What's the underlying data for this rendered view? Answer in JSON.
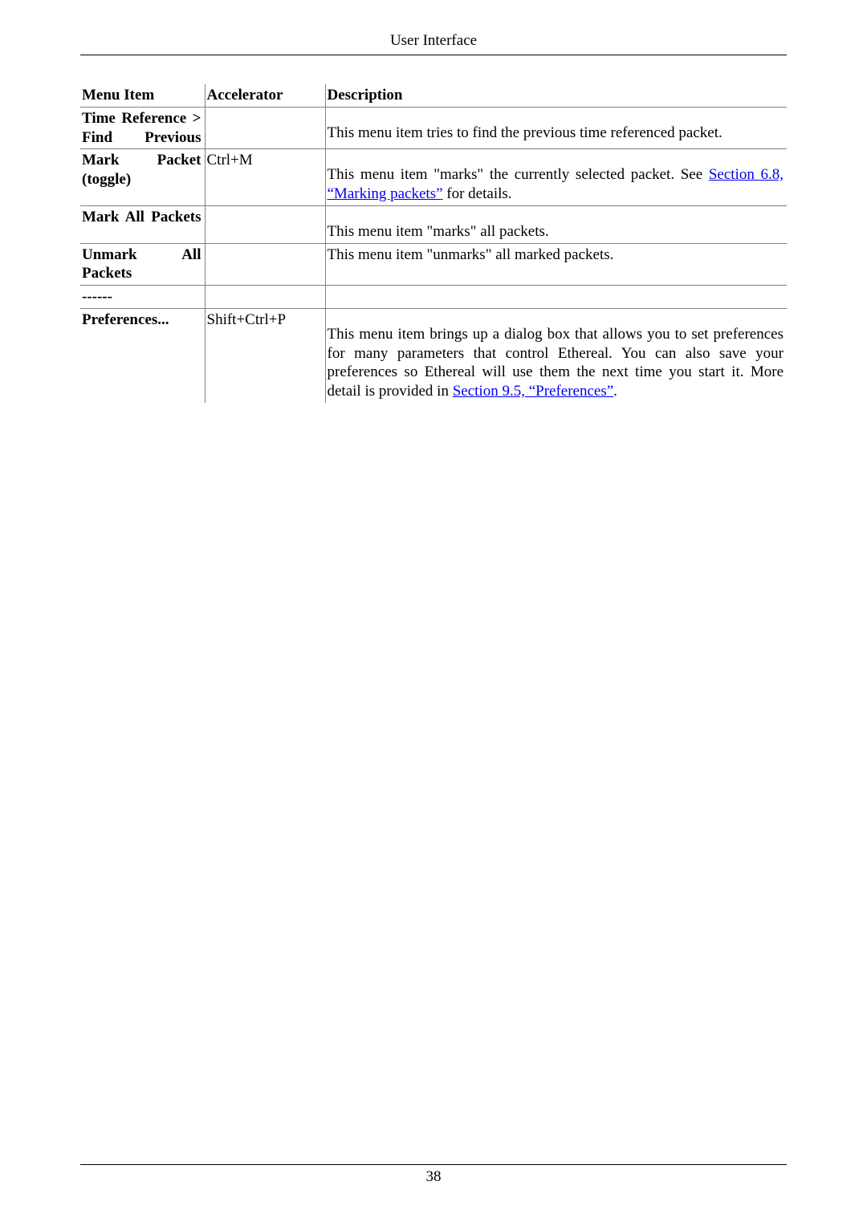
{
  "page": {
    "header_title": "User Interface",
    "page_number": "38"
  },
  "table": {
    "headers": {
      "menu_item": "Menu Item",
      "accelerator": "Accelerator",
      "description": "Description"
    },
    "rows": {
      "time_ref_prev": {
        "menu_item": "Time Reference > Find Previous",
        "accelerator": "",
        "description": "This menu item tries to find the previous time referenced packet."
      },
      "mark_packet": {
        "menu_item": "Mark Packet (toggle)",
        "accelerator": "Ctrl+M",
        "desc_pre": "This menu item \"marks\" the currently selected packet. See ",
        "link_text": "Section 6.8, “Marking packets”",
        "desc_post": " for details."
      },
      "mark_all": {
        "menu_item": "Mark All Packets",
        "accelerator": "",
        "description": "This menu item \"marks\" all packets."
      },
      "unmark_all": {
        "menu_item": "Unmark All Packets",
        "accelerator": "",
        "description": "This menu item \"unmarks\" all marked packets."
      },
      "separator": {
        "menu_item": "------",
        "accelerator": "",
        "description": ""
      },
      "preferences": {
        "menu_item": "Preferences...",
        "accelerator": "Shift+Ctrl+P",
        "desc_pre": "This menu item brings up a dialog box that allows you to set preferences for many parameters that control Ethereal. You can also save your preferences so Ethereal will use them the next time you start it. More detail is provided in ",
        "link_text": "Section 9.5, “Preferences”",
        "desc_post": "."
      }
    }
  }
}
